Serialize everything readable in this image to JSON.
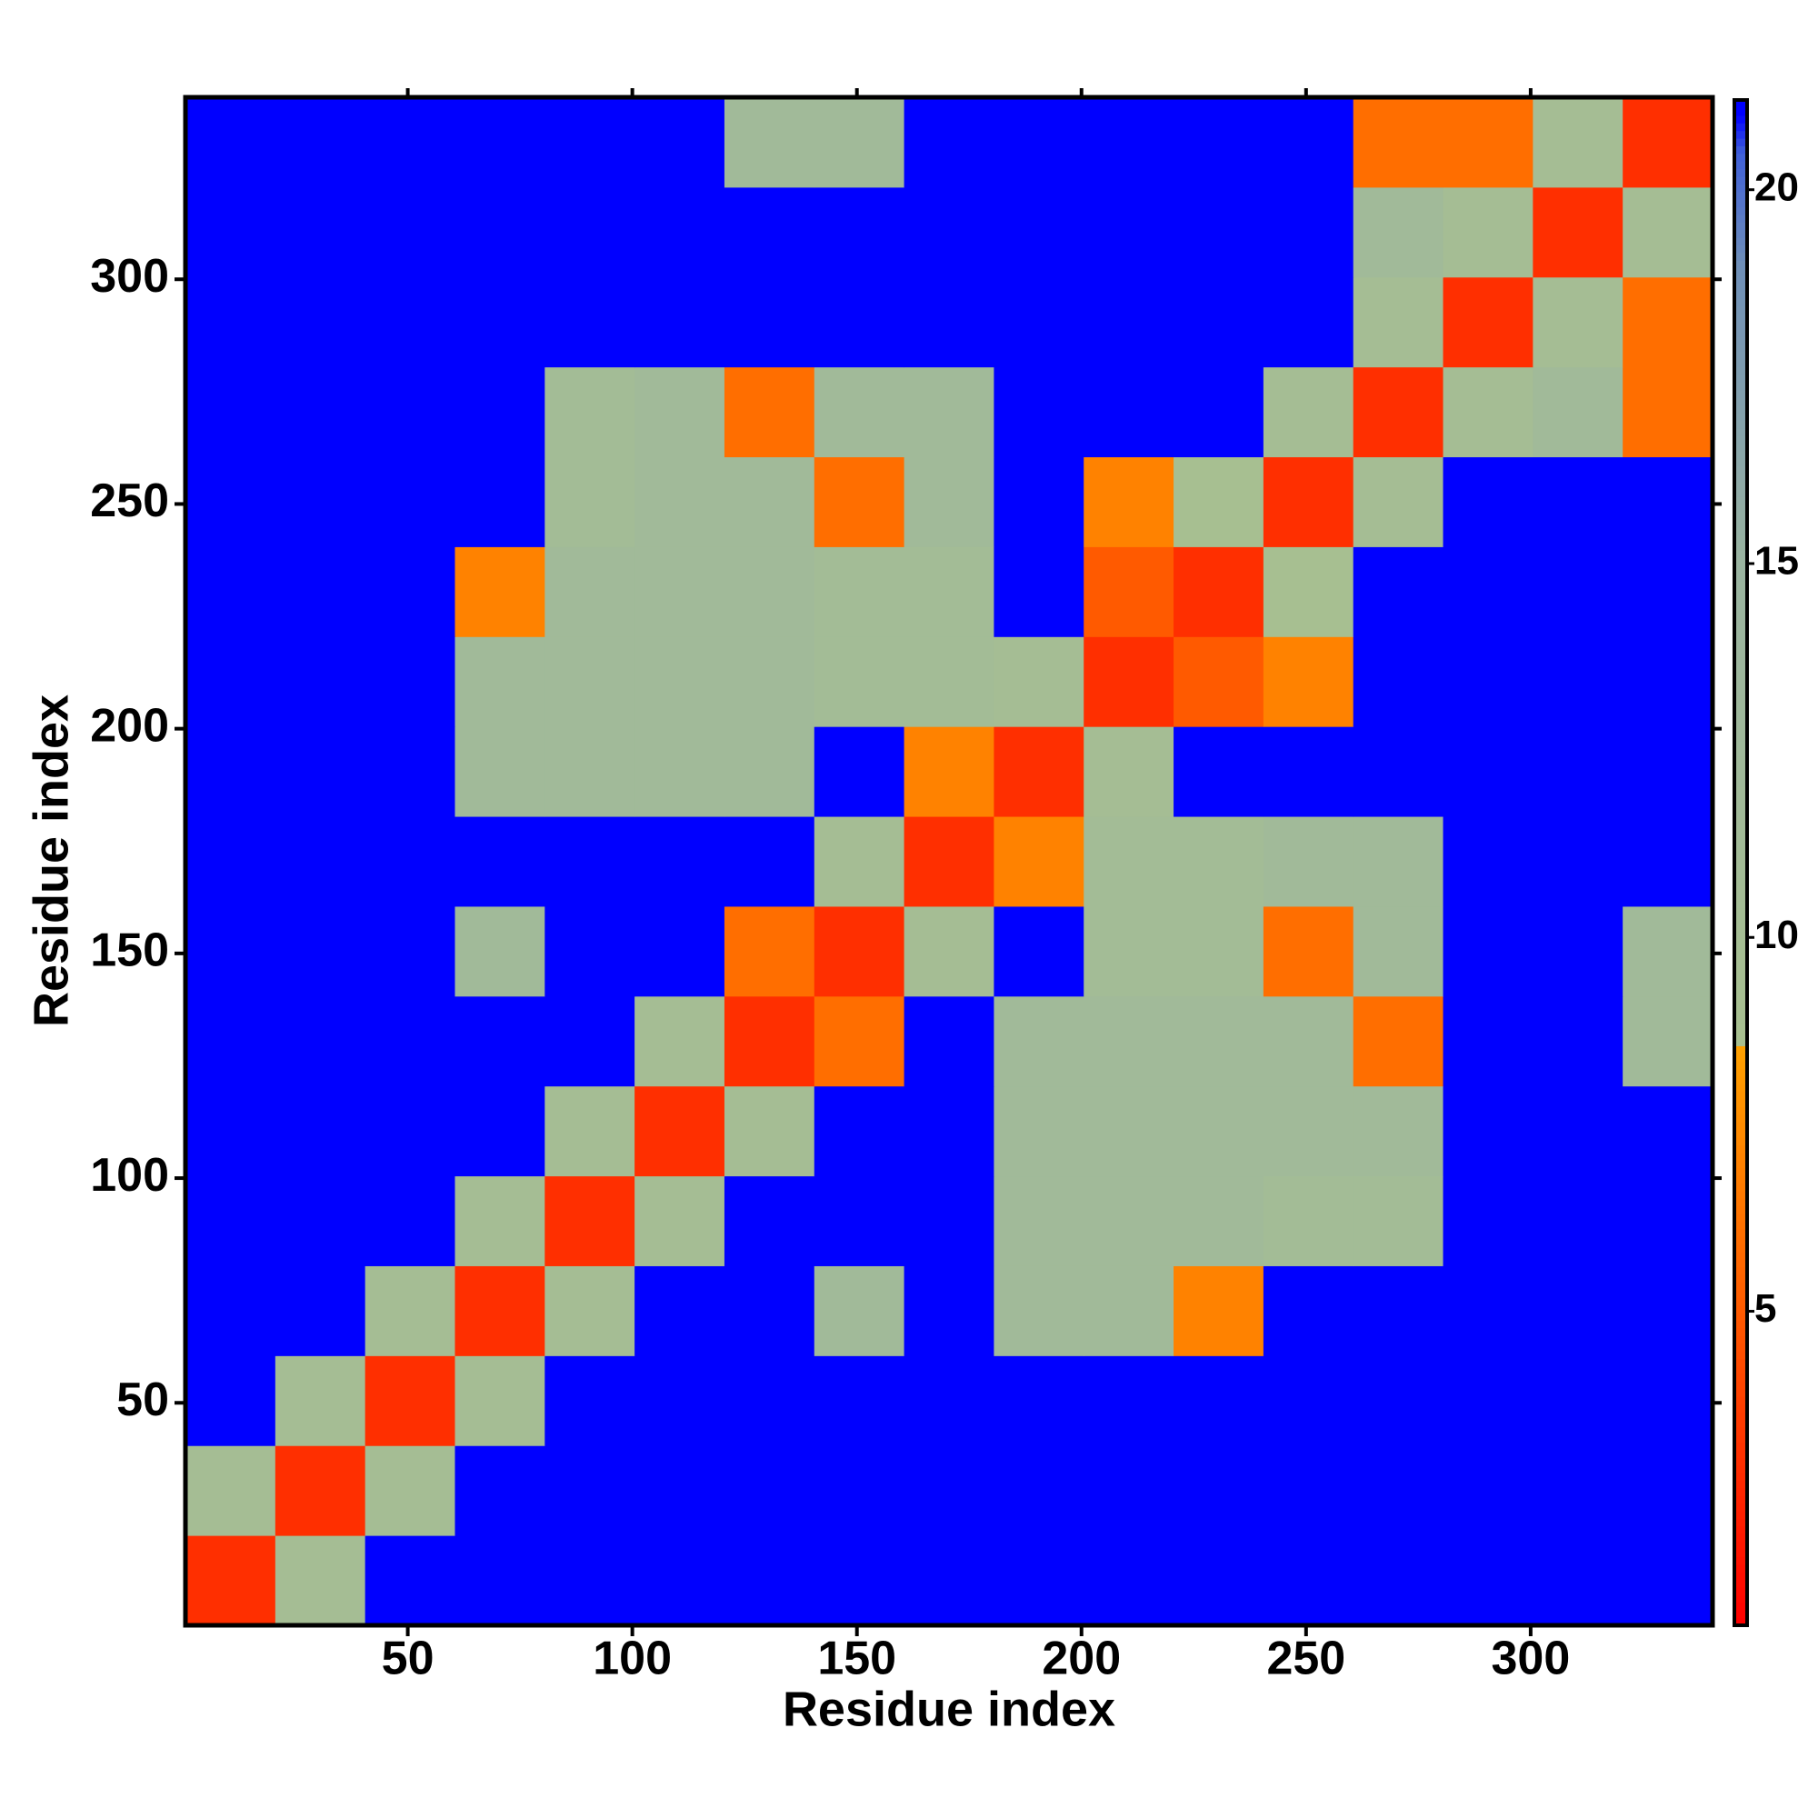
{
  "chart_data": {
    "type": "heatmap",
    "xlabel": "Residue index",
    "ylabel": "Residue index",
    "bins": [
      0.5,
      20.5,
      40.5,
      60.5,
      80.5,
      100.5,
      120.5,
      140.5,
      160.5,
      180.5,
      200.5,
      220.5,
      240.5,
      260.5,
      280.5,
      300.5,
      320.5,
      340.5
    ],
    "z": [
      [
        3,
        10,
        21,
        21,
        21,
        21,
        21,
        21,
        21,
        21,
        21,
        21,
        21,
        21,
        21,
        21,
        21
      ],
      [
        10,
        3,
        10,
        21,
        21,
        21,
        21,
        21,
        21,
        21,
        21,
        21,
        21,
        21,
        21,
        21,
        21
      ],
      [
        21,
        10,
        3,
        10,
        21,
        21,
        21,
        21,
        21,
        21,
        21,
        21,
        21,
        21,
        21,
        21,
        21
      ],
      [
        21,
        21,
        10,
        3,
        10,
        21,
        21,
        12,
        21,
        12,
        12,
        7,
        21,
        21,
        21,
        21,
        21
      ],
      [
        21,
        21,
        21,
        10,
        3,
        10,
        21,
        21,
        21,
        12,
        12,
        12,
        11,
        11,
        21,
        21,
        21
      ],
      [
        21,
        21,
        21,
        21,
        10,
        3,
        10,
        21,
        21,
        12,
        12,
        12,
        12,
        12,
        21,
        21,
        21
      ],
      [
        21,
        21,
        21,
        21,
        21,
        10,
        3,
        6,
        21,
        12,
        12,
        12,
        12,
        6,
        21,
        21,
        12
      ],
      [
        21,
        21,
        21,
        12,
        21,
        21,
        6,
        3,
        10,
        21,
        11,
        11,
        6,
        12,
        21,
        21,
        12
      ],
      [
        21,
        21,
        21,
        21,
        21,
        21,
        21,
        10,
        3,
        7,
        11,
        11,
        12,
        12,
        21,
        21,
        21
      ],
      [
        21,
        21,
        21,
        12,
        12,
        12,
        12,
        21,
        7,
        3,
        10,
        21,
        21,
        21,
        21,
        21,
        21
      ],
      [
        21,
        21,
        21,
        12,
        12,
        12,
        12,
        11,
        11,
        10,
        3,
        5,
        7,
        21,
        21,
        21,
        21
      ],
      [
        21,
        21,
        21,
        7,
        12,
        12,
        12,
        11,
        11,
        21,
        5,
        3,
        9,
        21,
        21,
        21,
        21
      ],
      [
        21,
        21,
        21,
        21,
        11,
        12,
        12,
        6,
        12,
        21,
        7,
        9,
        3,
        10,
        21,
        21,
        21
      ],
      [
        21,
        21,
        21,
        21,
        11,
        12,
        6,
        12,
        12,
        21,
        21,
        21,
        10,
        3,
        10,
        12,
        6
      ],
      [
        21,
        21,
        21,
        21,
        21,
        21,
        21,
        21,
        21,
        21,
        21,
        21,
        21,
        10,
        3,
        10,
        6
      ],
      [
        21,
        21,
        21,
        21,
        21,
        21,
        21,
        21,
        21,
        21,
        21,
        21,
        21,
        12,
        10,
        3,
        10
      ],
      [
        21,
        21,
        21,
        21,
        21,
        21,
        12,
        12,
        21,
        21,
        21,
        21,
        21,
        6,
        6,
        10,
        3
      ]
    ],
    "xlim": [
      0.5,
      340.5
    ],
    "ylim": [
      0.5,
      340.5
    ],
    "xticks": [
      50,
      100,
      150,
      200,
      250,
      300
    ],
    "yticks": [
      50,
      100,
      150,
      200,
      250,
      300
    ],
    "zlim": [
      0.8,
      21.2
    ],
    "zticks": [
      5,
      10,
      15,
      20
    ],
    "colorscale": [
      [
        0.8,
        "#ff0000"
      ],
      [
        5,
        "#ff5a00"
      ],
      [
        8.5,
        "#ffa000"
      ],
      [
        8.6,
        "#a8c090"
      ],
      [
        15,
        "#9ab4a0"
      ],
      [
        19,
        "#6f8fb8"
      ],
      [
        20.5,
        "#4060d8"
      ],
      [
        21,
        "#0000ff"
      ]
    ]
  }
}
